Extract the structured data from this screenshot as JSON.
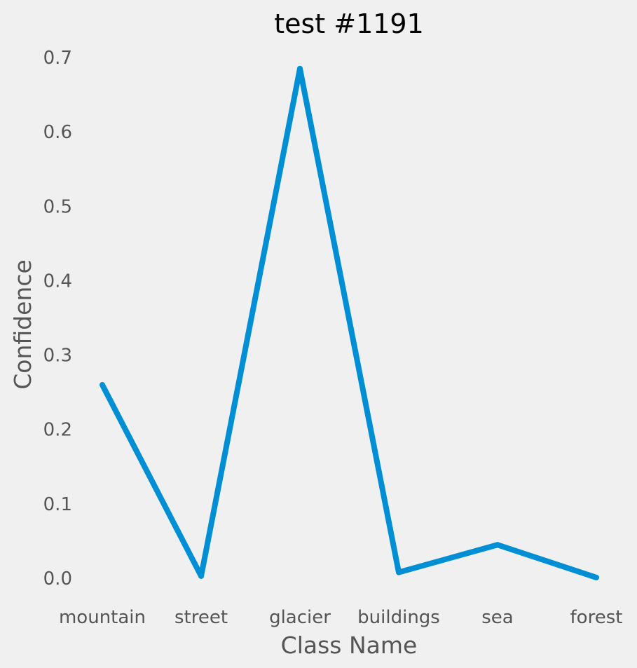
{
  "chart_data": {
    "type": "line",
    "title": "test #1191",
    "xlabel": "Class Name",
    "ylabel": "Confidence",
    "categories": [
      "mountain",
      "street",
      "glacier",
      "buildings",
      "sea",
      "forest"
    ],
    "values": [
      0.26,
      0.003,
      0.685,
      0.008,
      0.045,
      0.001
    ],
    "ylim": [
      -0.03,
      0.72
    ],
    "yticks": [
      "0.0",
      "0.1",
      "0.2",
      "0.3",
      "0.4",
      "0.5",
      "0.6",
      "0.7"
    ],
    "grid": false,
    "line_color": "#008fd5",
    "background_color": "#f0f0f0"
  }
}
